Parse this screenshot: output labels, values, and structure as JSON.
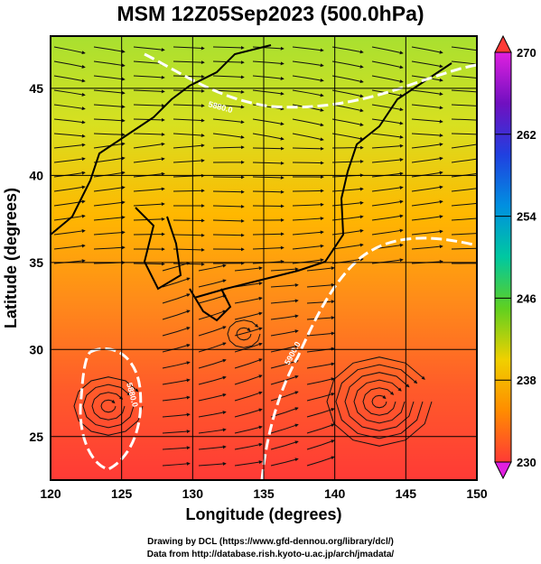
{
  "title": "MSM 12Z05Sep2023 (500.0hPa)",
  "xlabel": "Longitude (degrees)",
  "ylabel": "Latitude  (degrees)",
  "x_ticks": [
    "120",
    "125",
    "130",
    "135",
    "140",
    "145",
    "150"
  ],
  "y_ticks": [
    "25",
    "30",
    "35",
    "40",
    "45"
  ],
  "colorbar_ticks": [
    "270",
    "262",
    "254",
    "246",
    "238",
    "230"
  ],
  "contour_labels": [
    "5880.0",
    "5900.0",
    "5880.0"
  ],
  "footer": {
    "line1": "Drawing by DCL (https://www.gfd-dennou.org/library/dcl/)",
    "line2": "Data from http://database.rish.kyoto-u.ac.jp/arch/jmadata/"
  },
  "map": {
    "lon_range": [
      120,
      150
    ],
    "lat_range": [
      22.5,
      48
    ],
    "colorbar_range": [
      230,
      270
    ],
    "gradient_colors": [
      "#ff3a36",
      "#ff5a2a",
      "#ff8a1a",
      "#ffb800",
      "#d8e020",
      "#a8e030"
    ],
    "colorbar_colors": [
      "#ff3a36",
      "#ff8c00",
      "#f0d000",
      "#60d020",
      "#00c8a0",
      "#0090e0",
      "#2040e0",
      "#7010c0",
      "#e020e0"
    ]
  }
}
